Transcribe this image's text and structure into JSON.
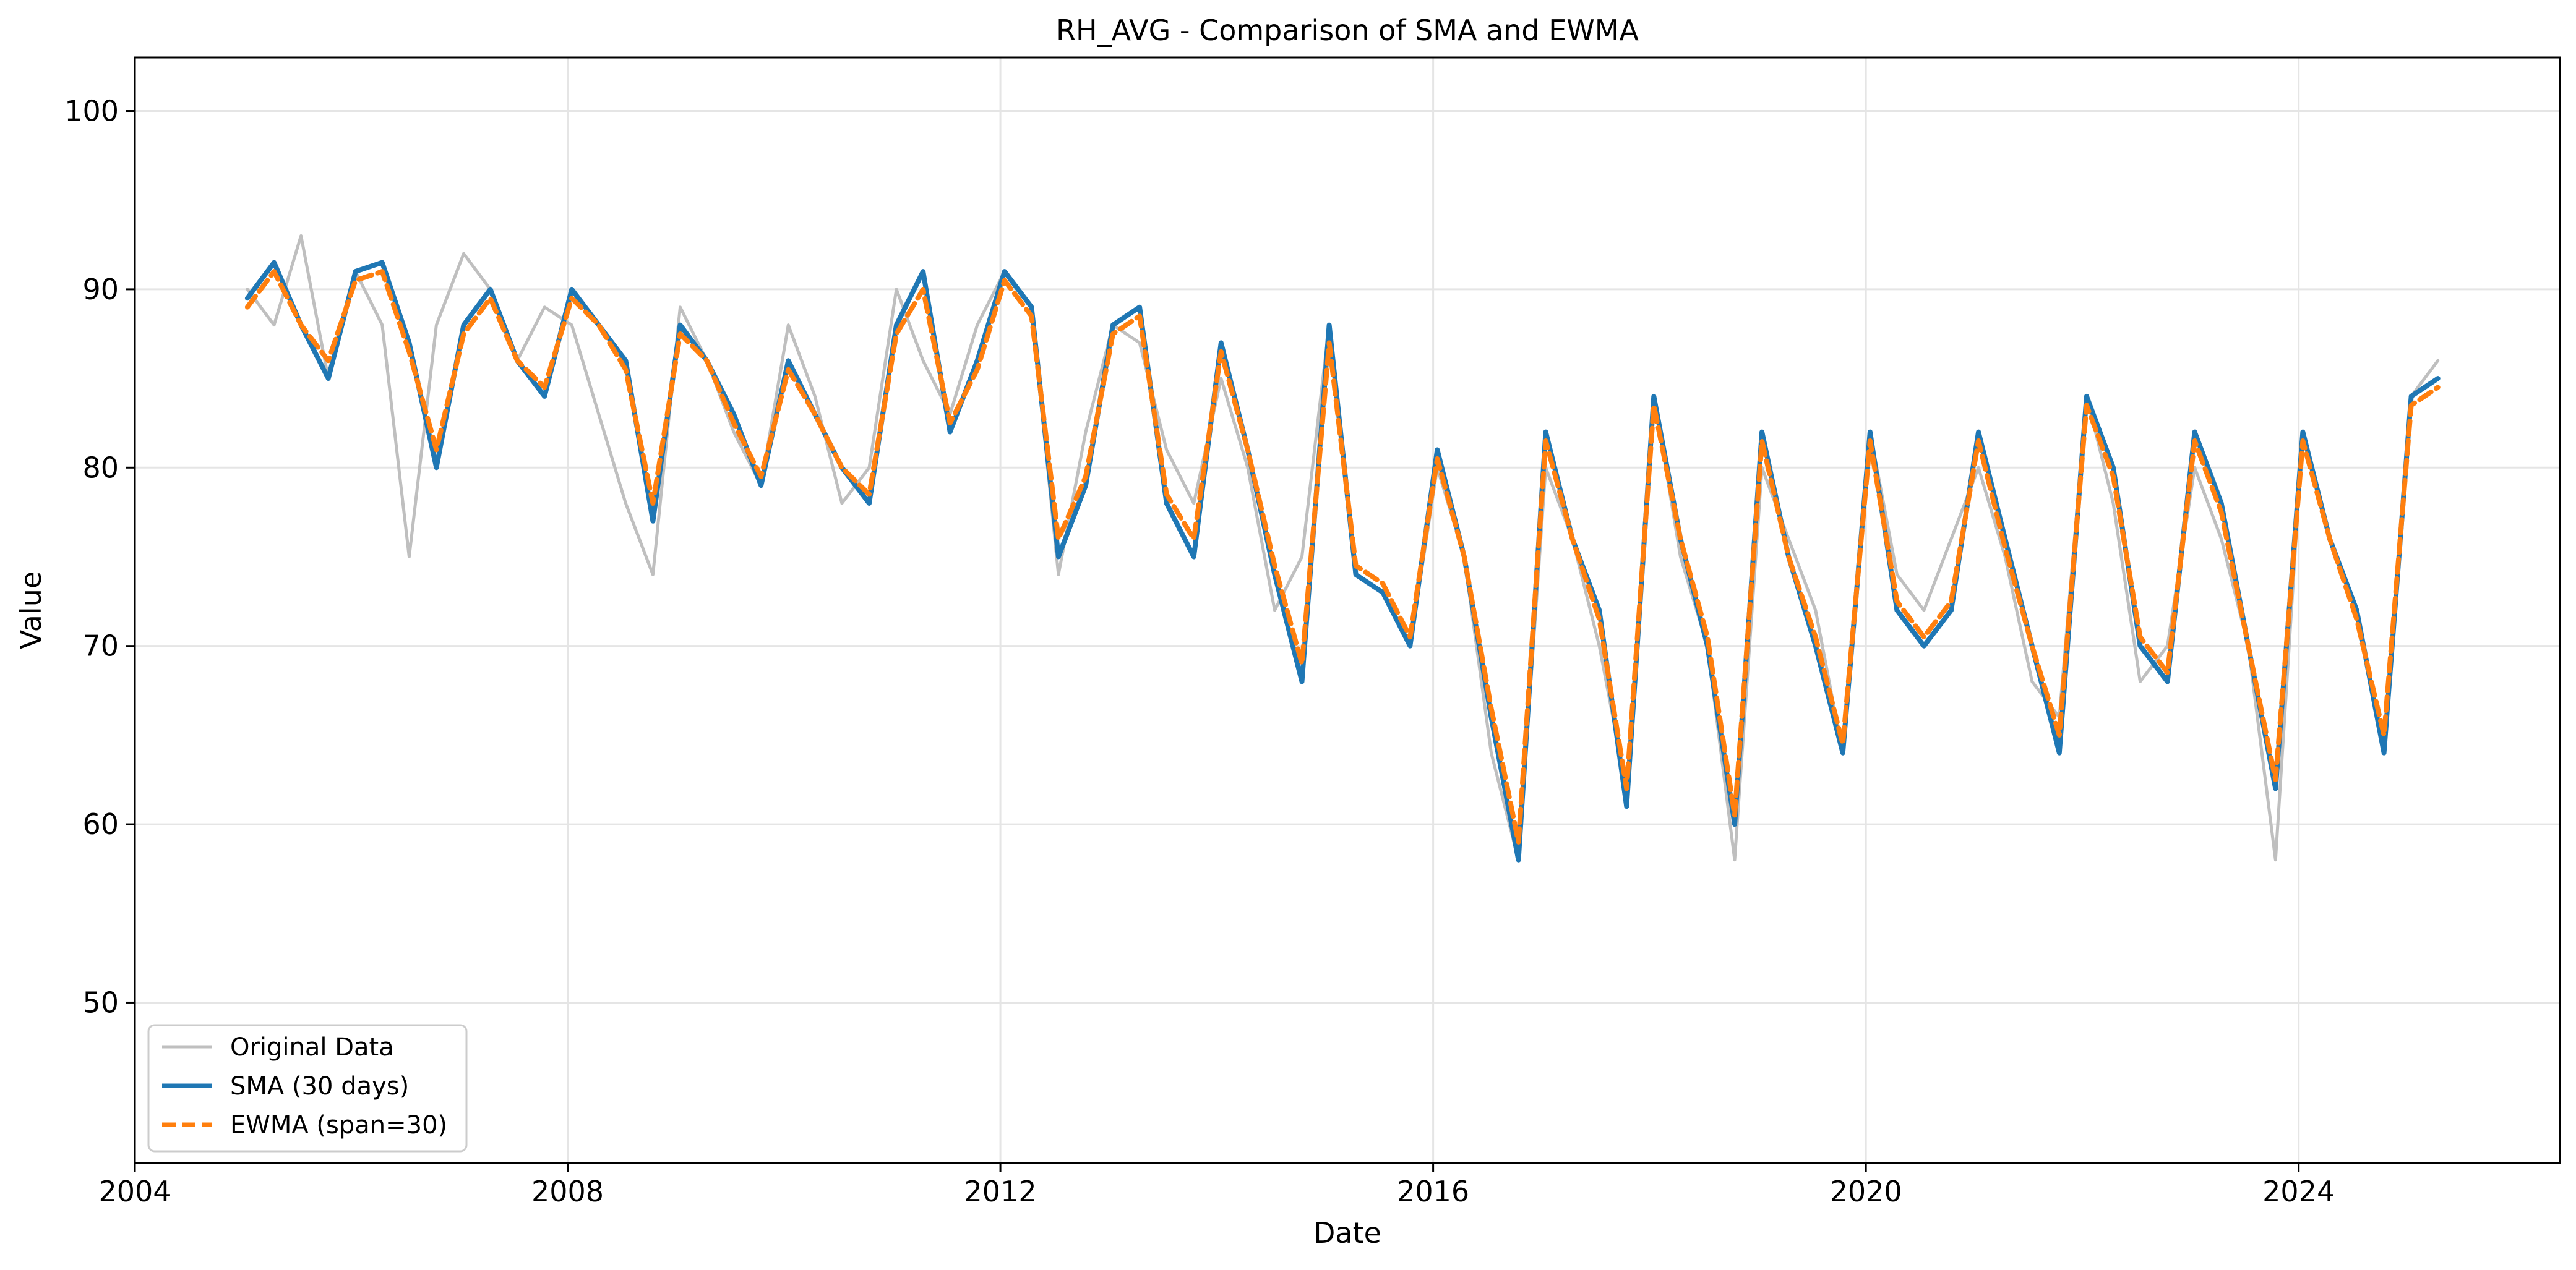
{
  "chart_data": {
    "type": "line",
    "title": "RH_AVG - Comparison of SMA and EWMA",
    "xlabel": "Date",
    "ylabel": "Value",
    "xlim": [
      "2004-01-01",
      "2026-06-01"
    ],
    "ylim": [
      41,
      103
    ],
    "xticks": [
      "2004",
      "2008",
      "2012",
      "2016",
      "2020",
      "2024"
    ],
    "yticks": [
      50,
      60,
      70,
      80,
      90,
      100
    ],
    "grid": true,
    "legend_position": "lower-left",
    "colors": {
      "original": "#bfbfbf",
      "sma": "#1f77b4",
      "ewma": "#ff7f0e"
    },
    "series": [
      {
        "name": "Original Data",
        "style": "solid",
        "x": [
          "2005-01",
          "2005-04",
          "2005-07",
          "2005-10",
          "2006-01",
          "2006-04",
          "2006-07",
          "2006-10",
          "2007-01",
          "2007-04",
          "2007-07",
          "2007-10",
          "2008-01",
          "2008-04",
          "2008-07",
          "2008-10",
          "2009-01",
          "2009-04",
          "2009-07",
          "2009-10",
          "2010-01",
          "2010-04",
          "2010-07",
          "2010-10",
          "2011-01",
          "2011-04",
          "2011-07",
          "2011-10",
          "2012-01",
          "2012-04",
          "2012-07",
          "2012-10",
          "2013-01",
          "2013-04",
          "2013-07",
          "2013-10",
          "2014-01",
          "2014-04",
          "2014-07",
          "2014-10",
          "2015-01",
          "2015-04",
          "2015-07",
          "2015-10",
          "2016-01",
          "2016-04",
          "2016-07",
          "2016-10",
          "2017-01",
          "2017-04",
          "2017-07",
          "2017-10",
          "2018-01",
          "2018-04",
          "2018-07",
          "2018-10",
          "2019-01",
          "2019-04",
          "2019-07",
          "2019-10",
          "2020-01",
          "2020-04",
          "2020-07",
          "2020-10",
          "2021-01",
          "2021-04",
          "2021-07",
          "2021-10",
          "2022-01",
          "2022-04",
          "2022-07",
          "2022-10",
          "2023-01",
          "2023-04",
          "2023-07",
          "2023-10",
          "2024-01",
          "2024-04",
          "2024-07",
          "2024-10",
          "2025-01",
          "2025-04"
        ],
        "values": [
          90,
          88,
          93,
          85,
          91,
          88,
          75,
          88,
          92,
          90,
          86,
          89,
          88,
          83,
          78,
          74,
          89,
          86,
          82,
          79,
          88,
          84,
          78,
          80,
          90,
          86,
          83,
          88,
          91,
          89,
          74,
          82,
          88,
          87,
          81,
          78,
          85,
          80,
          72,
          75,
          88,
          74,
          73,
          70,
          80,
          75,
          64,
          58,
          80,
          76,
          70,
          62,
          84,
          75,
          70,
          58,
          80,
          76,
          72,
          64,
          82,
          74,
          72,
          76,
          80,
          75,
          68,
          66,
          84,
          78,
          68,
          70,
          80,
          76,
          70,
          58,
          82,
          76,
          72,
          64,
          84,
          86
        ]
      },
      {
        "name": "SMA (30 days)",
        "style": "solid",
        "x": [
          "2005-01",
          "2005-04",
          "2005-07",
          "2005-10",
          "2006-01",
          "2006-04",
          "2006-07",
          "2006-10",
          "2007-01",
          "2007-04",
          "2007-07",
          "2007-10",
          "2008-01",
          "2008-04",
          "2008-07",
          "2008-10",
          "2009-01",
          "2009-04",
          "2009-07",
          "2009-10",
          "2010-01",
          "2010-04",
          "2010-07",
          "2010-10",
          "2011-01",
          "2011-04",
          "2011-07",
          "2011-10",
          "2012-01",
          "2012-04",
          "2012-07",
          "2012-10",
          "2013-01",
          "2013-04",
          "2013-07",
          "2013-10",
          "2014-01",
          "2014-04",
          "2014-07",
          "2014-10",
          "2015-01",
          "2015-04",
          "2015-07",
          "2015-10",
          "2016-01",
          "2016-04",
          "2016-07",
          "2016-10",
          "2017-01",
          "2017-04",
          "2017-07",
          "2017-10",
          "2018-01",
          "2018-04",
          "2018-07",
          "2018-10",
          "2019-01",
          "2019-04",
          "2019-07",
          "2019-10",
          "2020-01",
          "2020-04",
          "2020-07",
          "2020-10",
          "2021-01",
          "2021-04",
          "2021-07",
          "2021-10",
          "2022-01",
          "2022-04",
          "2022-07",
          "2022-10",
          "2023-01",
          "2023-04",
          "2023-07",
          "2023-10",
          "2024-01",
          "2024-04",
          "2024-07",
          "2024-10",
          "2025-01",
          "2025-04"
        ],
        "values": [
          89.5,
          91.5,
          88,
          85,
          91,
          91.5,
          87,
          80,
          88,
          90,
          86,
          84,
          90,
          88,
          86,
          77,
          88,
          86,
          83,
          79,
          86,
          83,
          80,
          78,
          88,
          91,
          82,
          86,
          91,
          89,
          75,
          79,
          88,
          89,
          78,
          75,
          87,
          81,
          74,
          68,
          88,
          74,
          73,
          70,
          81,
          75,
          66,
          58,
          82,
          76,
          72,
          61,
          84,
          76,
          70,
          60,
          82,
          75,
          70,
          64,
          82,
          72,
          70,
          72,
          82,
          76,
          70,
          64,
          84,
          80,
          70,
          68,
          82,
          78,
          70,
          62,
          82,
          76,
          72,
          64,
          84,
          85
        ]
      },
      {
        "name": "EWMA (span=30)",
        "style": "dashed",
        "x": [
          "2005-01",
          "2005-04",
          "2005-07",
          "2005-10",
          "2006-01",
          "2006-04",
          "2006-07",
          "2006-10",
          "2007-01",
          "2007-04",
          "2007-07",
          "2007-10",
          "2008-01",
          "2008-04",
          "2008-07",
          "2008-10",
          "2009-01",
          "2009-04",
          "2009-07",
          "2009-10",
          "2010-01",
          "2010-04",
          "2010-07",
          "2010-10",
          "2011-01",
          "2011-04",
          "2011-07",
          "2011-10",
          "2012-01",
          "2012-04",
          "2012-07",
          "2012-10",
          "2013-01",
          "2013-04",
          "2013-07",
          "2013-10",
          "2014-01",
          "2014-04",
          "2014-07",
          "2014-10",
          "2015-01",
          "2015-04",
          "2015-07",
          "2015-10",
          "2016-01",
          "2016-04",
          "2016-07",
          "2016-10",
          "2017-01",
          "2017-04",
          "2017-07",
          "2017-10",
          "2018-01",
          "2018-04",
          "2018-07",
          "2018-10",
          "2019-01",
          "2019-04",
          "2019-07",
          "2019-10",
          "2020-01",
          "2020-04",
          "2020-07",
          "2020-10",
          "2021-01",
          "2021-04",
          "2021-07",
          "2021-10",
          "2022-01",
          "2022-04",
          "2022-07",
          "2022-10",
          "2023-01",
          "2023-04",
          "2023-07",
          "2023-10",
          "2024-01",
          "2024-04",
          "2024-07",
          "2024-10",
          "2025-01",
          "2025-04"
        ],
        "values": [
          89,
          91,
          88,
          86,
          90.5,
          91,
          86.5,
          81,
          87.5,
          89.5,
          86,
          84.5,
          89.5,
          88,
          85.5,
          78,
          87.5,
          86,
          82.5,
          79.5,
          85.5,
          83,
          80,
          78.5,
          87.5,
          90,
          82.5,
          85.5,
          90.5,
          88.5,
          76,
          79.5,
          87.5,
          88.5,
          78.5,
          76,
          86.5,
          81,
          74.5,
          69,
          87,
          74.5,
          73.5,
          70.5,
          80.5,
          75,
          66.5,
          59,
          81.5,
          76,
          71.5,
          62,
          83.5,
          76,
          70.5,
          60.5,
          81.5,
          75,
          70.5,
          64.5,
          81.5,
          72.5,
          70.5,
          72.5,
          81.5,
          75.5,
          70,
          65,
          83.5,
          79.5,
          70.5,
          68.5,
          81.5,
          77.5,
          70,
          62.5,
          81.5,
          76,
          71.5,
          65,
          83.5,
          84.5
        ]
      }
    ]
  }
}
